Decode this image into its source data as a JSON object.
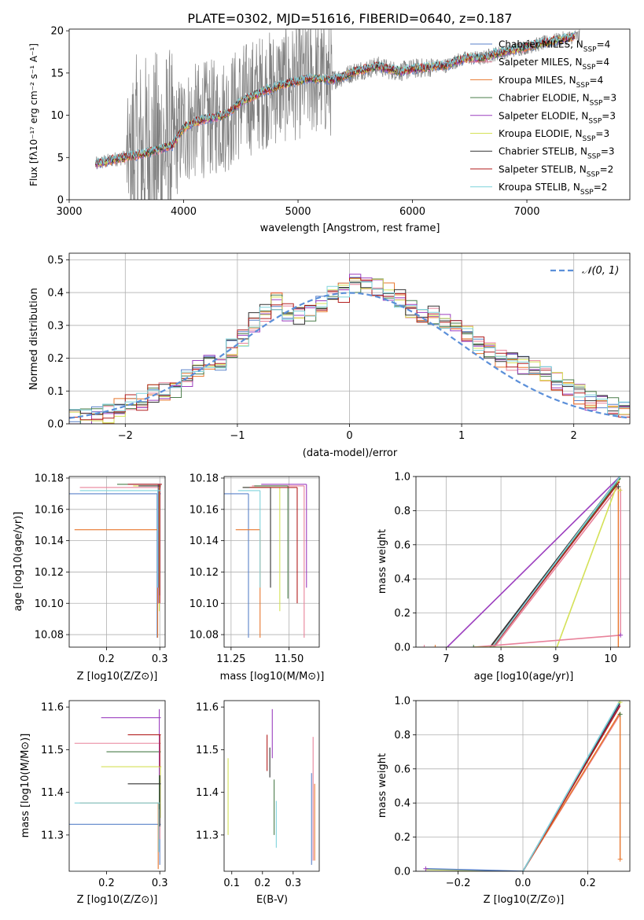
{
  "chart_data": [
    {
      "id": "spectrum",
      "type": "line",
      "title": "PLATE=0302, MJD=51616, FIBERID=0640, z=0.187",
      "xlabel": "wavelength [Angstrom, rest frame]",
      "ylabel": "Flux [fλ10⁻¹⁷ erg cm⁻² s⁻¹ A⁻¹]",
      "xlim": [
        3000,
        7900
      ],
      "ylim": [
        0,
        20.2
      ],
      "xticks": [
        3000,
        4000,
        5000,
        6000,
        7000
      ],
      "yticks": [
        0,
        5,
        10,
        15,
        20
      ],
      "legend": "top-right",
      "series": [
        {
          "name": "Chabrier MILES, N_SSP=4",
          "color": "#5a82c9"
        },
        {
          "name": "Salpeter MILES, N_SSP=4",
          "color": "#e8829a"
        },
        {
          "name": "Kroupa MILES, N_SSP=4",
          "color": "#e8772e"
        },
        {
          "name": "Chabrier ELODIE, N_SSP=3",
          "color": "#4a7d4a"
        },
        {
          "name": "Salpeter ELODIE, N_SSP=3",
          "color": "#9c3fbf"
        },
        {
          "name": "Kroupa ELODIE, N_SSP=3",
          "color": "#d4e157"
        },
        {
          "name": "Chabrier STELIB, N_SSP=3",
          "color": "#333333"
        },
        {
          "name": "Salpeter STELIB, N_SSP=2",
          "color": "#b21e1e"
        },
        {
          "name": "Kroupa STELIB, N_SSP=2",
          "color": "#7fd3dc"
        }
      ],
      "data_color": "#808080",
      "model_continuum": {
        "x": [
          3230,
          3400,
          3600,
          3700,
          3800,
          3900,
          4000,
          4100,
          4200,
          4300,
          4400,
          4500,
          4600,
          4700,
          4800,
          4900,
          5000,
          5100,
          5200,
          5300,
          5400,
          5500,
          5600,
          5700,
          5800,
          5900,
          6000,
          6100,
          6200,
          6300,
          6400,
          6500,
          6600,
          6700,
          6800,
          6900,
          7000,
          7100,
          7200,
          7300,
          7400
        ],
        "y": [
          4.2,
          4.8,
          5.3,
          5.6,
          6.0,
          6.4,
          8.5,
          9.2,
          9.6,
          9.8,
          10.3,
          11.6,
          12.2,
          12.9,
          13.3,
          13.7,
          14.0,
          14.4,
          14.3,
          14.2,
          14.6,
          15.2,
          15.5,
          15.8,
          15.4,
          15.2,
          15.5,
          15.6,
          15.8,
          15.9,
          16.5,
          16.8,
          16.7,
          17.2,
          17.5,
          17.8,
          18.1,
          18.4,
          18.7,
          19.0,
          19.3
        ]
      }
    },
    {
      "id": "residuals",
      "type": "line",
      "xlabel": "(data-model)/error",
      "ylabel": "Normed distribution",
      "xlim": [
        -2.5,
        2.5
      ],
      "ylim": [
        0,
        0.52
      ],
      "xticks": [
        -2,
        -1,
        0,
        1,
        2
      ],
      "yticks": [
        0.0,
        0.1,
        0.2,
        0.3,
        0.4,
        0.5
      ],
      "grid": true,
      "legend": "top-right",
      "gaussian": {
        "name": "𝒩(0, 1)",
        "mu": 0,
        "sigma": 1,
        "color": "#5b8fd9"
      },
      "hist_edges": [
        -2.5,
        -2.4,
        -2.3,
        -2.2,
        -2.1,
        -2.0,
        -1.9,
        -1.8,
        -1.7,
        -1.6,
        -1.5,
        -1.4,
        -1.3,
        -1.2,
        -1.1,
        -1.0,
        -0.9,
        -0.8,
        -0.7,
        -0.6,
        -0.5,
        -0.4,
        -0.3,
        -0.2,
        -0.1,
        0.0,
        0.1,
        0.2,
        0.3,
        0.4,
        0.5,
        0.6,
        0.7,
        0.8,
        0.9,
        1.0,
        1.1,
        1.2,
        1.3,
        1.4,
        1.5,
        1.6,
        1.7,
        1.8,
        1.9,
        2.0,
        2.1,
        2.2,
        2.3,
        2.4,
        2.5
      ],
      "hist_mean": [
        0.02,
        0.02,
        0.03,
        0.03,
        0.05,
        0.06,
        0.07,
        0.09,
        0.1,
        0.11,
        0.14,
        0.17,
        0.18,
        0.19,
        0.23,
        0.26,
        0.31,
        0.34,
        0.37,
        0.34,
        0.33,
        0.34,
        0.36,
        0.39,
        0.4,
        0.43,
        0.44,
        0.42,
        0.4,
        0.38,
        0.35,
        0.32,
        0.33,
        0.31,
        0.29,
        0.27,
        0.24,
        0.22,
        0.2,
        0.19,
        0.18,
        0.17,
        0.15,
        0.13,
        0.11,
        0.09,
        0.07,
        0.06,
        0.05,
        0.05
      ]
    },
    {
      "id": "age-vs-Z",
      "type": "scatter",
      "xlabel": "Z [log10(Z/Z⊙)]",
      "ylabel": "age  [log10(age/yr)]",
      "xlim": [
        0.13,
        0.31
      ],
      "ylim": [
        10.072,
        10.181
      ],
      "xticks": [
        0.2,
        0.3
      ],
      "yticks": [
        10.08,
        10.1,
        10.12,
        10.14,
        10.16,
        10.18
      ],
      "grid": true
    },
    {
      "id": "age-vs-mass",
      "type": "scatter",
      "xlabel": "mass [log10(M/M⊙)]",
      "xlim": [
        11.22,
        11.63
      ],
      "ylim": [
        10.072,
        10.181
      ],
      "xticks": [
        11.25,
        11.5
      ],
      "yticks": [
        10.08,
        10.1,
        10.12,
        10.14,
        10.16,
        10.18
      ],
      "grid": true
    },
    {
      "id": "massweight-vs-age",
      "type": "line",
      "xlabel": "age  [log10(age/yr)]",
      "ylabel": "mass weight",
      "xlim": [
        6.45,
        10.35
      ],
      "ylim": [
        0,
        1.0
      ],
      "xticks": [
        7,
        8,
        9,
        10
      ],
      "yticks": [
        0.0,
        0.2,
        0.4,
        0.6,
        0.8,
        1.0
      ],
      "grid": true
    },
    {
      "id": "mass-vs-Z",
      "type": "scatter",
      "xlabel": "Z [log10(Z/Z⊙)]",
      "ylabel": "mass [log10(M/M⊙)]",
      "xlim": [
        0.13,
        0.31
      ],
      "ylim": [
        11.215,
        11.615
      ],
      "xticks": [
        0.2,
        0.3
      ],
      "yticks": [
        11.3,
        11.4,
        11.5,
        11.6
      ],
      "grid": false
    },
    {
      "id": "mass-vs-EBV",
      "type": "scatter",
      "xlabel": "E(B-V)",
      "xlim": [
        0.075,
        0.385
      ],
      "ylim": [
        11.215,
        11.615
      ],
      "xticks": [
        0.1,
        0.2,
        0.3
      ],
      "yticks": [
        11.3,
        11.4,
        11.5,
        11.6
      ],
      "grid": false
    },
    {
      "id": "massweight-vs-Z",
      "type": "line",
      "xlabel": "Z [log10(Z/Z⊙)]",
      "ylabel": "mass weight",
      "xlim": [
        -0.33,
        0.33
      ],
      "ylim": [
        0,
        1.0
      ],
      "xticks": [
        -0.2,
        0.0,
        0.2
      ],
      "yticks": [
        0.0,
        0.2,
        0.4,
        0.6,
        0.8,
        1.0
      ],
      "grid": true
    }
  ]
}
